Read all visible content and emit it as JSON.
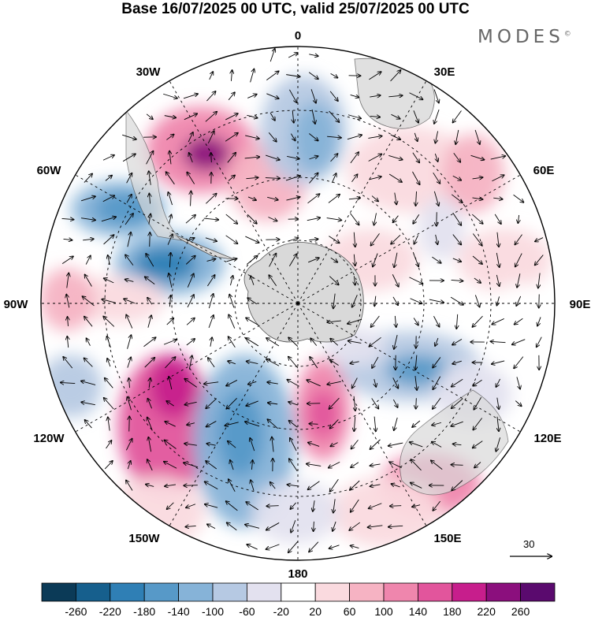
{
  "title": "Base 16/07/2025 00 UTC, valid 25/07/2025 00 UTC",
  "brand": "MODES",
  "brand_mark": "©",
  "longitude_labels": {
    "0": "0",
    "30E": "30E",
    "60E": "60E",
    "90E": "90E",
    "120E": "120E",
    "150E": "150E",
    "180": "180",
    "150W": "150W",
    "120W": "120W",
    "90W": "90W",
    "60W": "60W",
    "30W": "30W"
  },
  "vector_scale": "30",
  "colorbar": {
    "labels": [
      "-260",
      "-220",
      "-180",
      "-140",
      "-100",
      "-60",
      "-20",
      "20",
      "60",
      "100",
      "140",
      "180",
      "220",
      "260"
    ],
    "colors": [
      "#0b3a57",
      "#165f8d",
      "#2f7fb5",
      "#5799c8",
      "#86b3d8",
      "#b6c9e3",
      "#e3e1ef",
      "#ffffff",
      "#fadadf",
      "#f6b3c3",
      "#ef86ad",
      "#e2559c",
      "#c71e8c",
      "#8b0f7d",
      "#5a0a6e"
    ]
  },
  "colors": {
    "land": "#d9d9d9",
    "ocean_neutral": "#ffffff",
    "graticule": "#000000"
  }
}
